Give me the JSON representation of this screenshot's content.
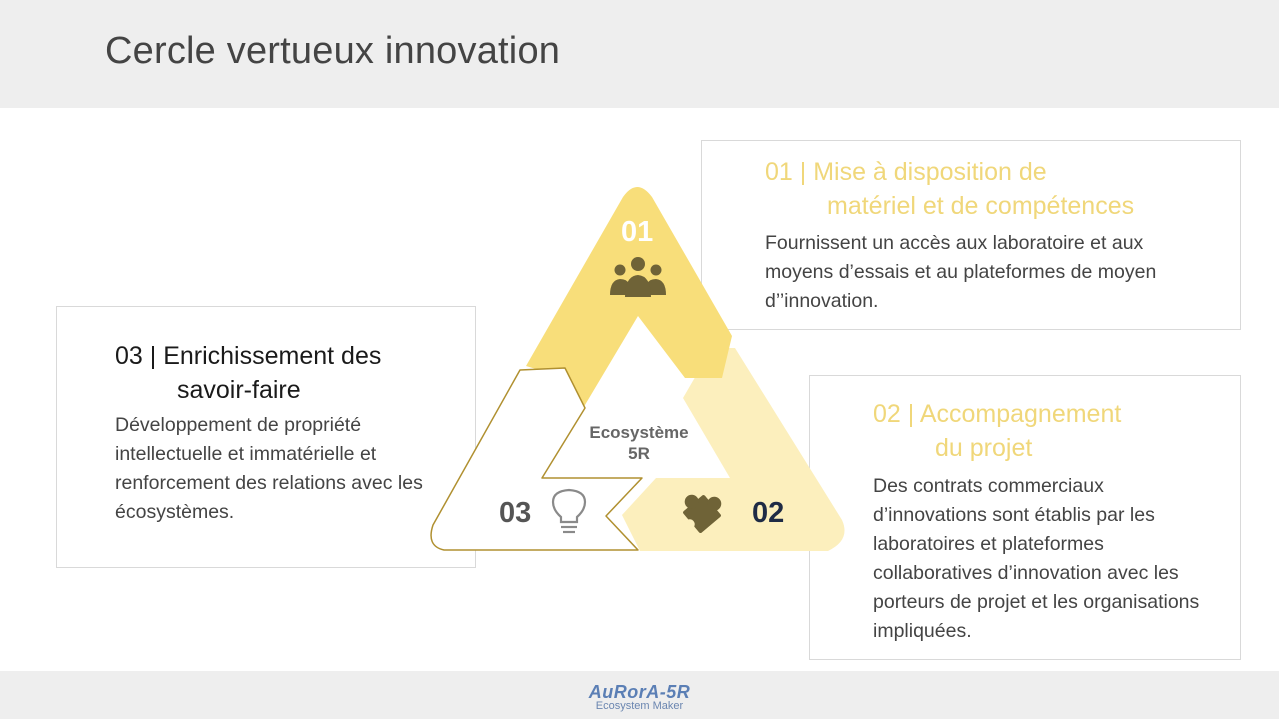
{
  "header": {
    "title": "Cercle vertueux innovation"
  },
  "cards": {
    "c01": {
      "heading_line1": "01 | Mise à disposition de",
      "heading_line2": "matériel et de compétences",
      "body": "Fournissent un accès aux laboratoire et aux moyens d’essais et au plateformes de moyen d’’innovation."
    },
    "c02": {
      "heading_line1": "02 | Accompagnement",
      "heading_line2": "du projet",
      "body": "Des contrats commerciaux d’innovations sont établis par les laboratoires et plateformes collaboratives d’innovation avec  les porteurs de projet et les organisations impliquées."
    },
    "c03": {
      "heading_line1": "03 | Enrichissement des",
      "heading_line2": "savoir-faire",
      "body": "Développement de propriété intellectuelle et immatérielle et renforcement des relations avec les écosystèmes."
    }
  },
  "diagram": {
    "num_01": "01",
    "num_02": "02",
    "num_03": "03",
    "center_line1": "Ecosystème",
    "center_line2": "5R",
    "icons": [
      "people-icon",
      "puzzle-icon",
      "lightbulb-icon"
    ],
    "colors": {
      "segment_01": "#f8de7a",
      "segment_02": "#fcefbd",
      "segment_03_outline": "#b09030",
      "icon": "#6f6337",
      "num_02": "#1f2b45",
      "num_03": "#555555"
    }
  },
  "footer": {
    "logo_main": "AuRorA-5R",
    "logo_sub": "Ecosystem Maker"
  }
}
